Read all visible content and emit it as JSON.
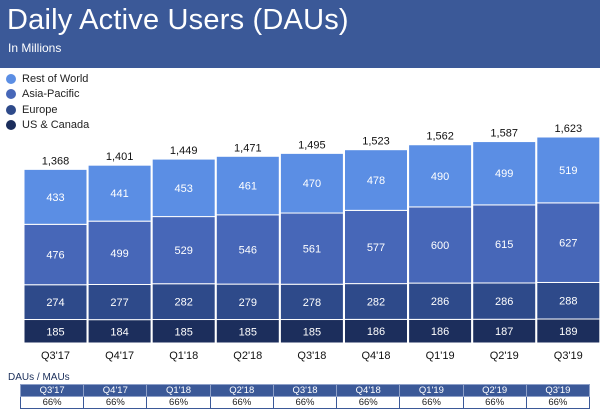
{
  "header": {
    "title": "Daily Active Users (DAUs)",
    "subtitle": "In Millions"
  },
  "colors": {
    "header_bg": "#3b5998",
    "rest_of_world": "#5b8ee4",
    "asia_pacific": "#4767b8",
    "europe": "#2e4a8a",
    "us_canada": "#1c2e5c"
  },
  "legend": [
    {
      "label": "Rest of World",
      "color": "#5b8ee4"
    },
    {
      "label": "Asia-Pacific",
      "color": "#4767b8"
    },
    {
      "label": "Europe",
      "color": "#2e4a8a"
    },
    {
      "label": "US & Canada",
      "color": "#1c2e5c"
    }
  ],
  "chart_data": {
    "type": "bar",
    "stacked": true,
    "title": "Daily Active Users (DAUs)",
    "subtitle": "In Millions",
    "categories": [
      "Q3'17",
      "Q4'17",
      "Q1'18",
      "Q2'18",
      "Q3'18",
      "Q4'18",
      "Q1'19",
      "Q2'19",
      "Q3'19"
    ],
    "totals": [
      "1,368",
      "1,401",
      "1,449",
      "1,471",
      "1,495",
      "1,523",
      "1,562",
      "1,587",
      "1,623"
    ],
    "series": [
      {
        "name": "US & Canada",
        "color": "#1c2e5c",
        "values": [
          185,
          184,
          185,
          185,
          185,
          186,
          186,
          187,
          189
        ]
      },
      {
        "name": "Europe",
        "color": "#2e4a8a",
        "values": [
          274,
          277,
          282,
          279,
          278,
          282,
          286,
          286,
          288
        ]
      },
      {
        "name": "Asia-Pacific",
        "color": "#4767b8",
        "values": [
          476,
          499,
          529,
          546,
          561,
          577,
          600,
          615,
          627
        ]
      },
      {
        "name": "Rest of World",
        "color": "#5b8ee4",
        "values": [
          433,
          441,
          453,
          461,
          470,
          478,
          490,
          499,
          519
        ]
      }
    ],
    "legend_position": "top-left",
    "grid": false
  },
  "table": {
    "label": "DAUs / MAUs",
    "headers": [
      "Q3'17",
      "Q4'17",
      "Q1'18",
      "Q2'18",
      "Q3'18",
      "Q4'18",
      "Q1'19",
      "Q2'19",
      "Q3'19"
    ],
    "values": [
      "66%",
      "66%",
      "66%",
      "66%",
      "66%",
      "66%",
      "66%",
      "66%",
      "66%"
    ]
  }
}
